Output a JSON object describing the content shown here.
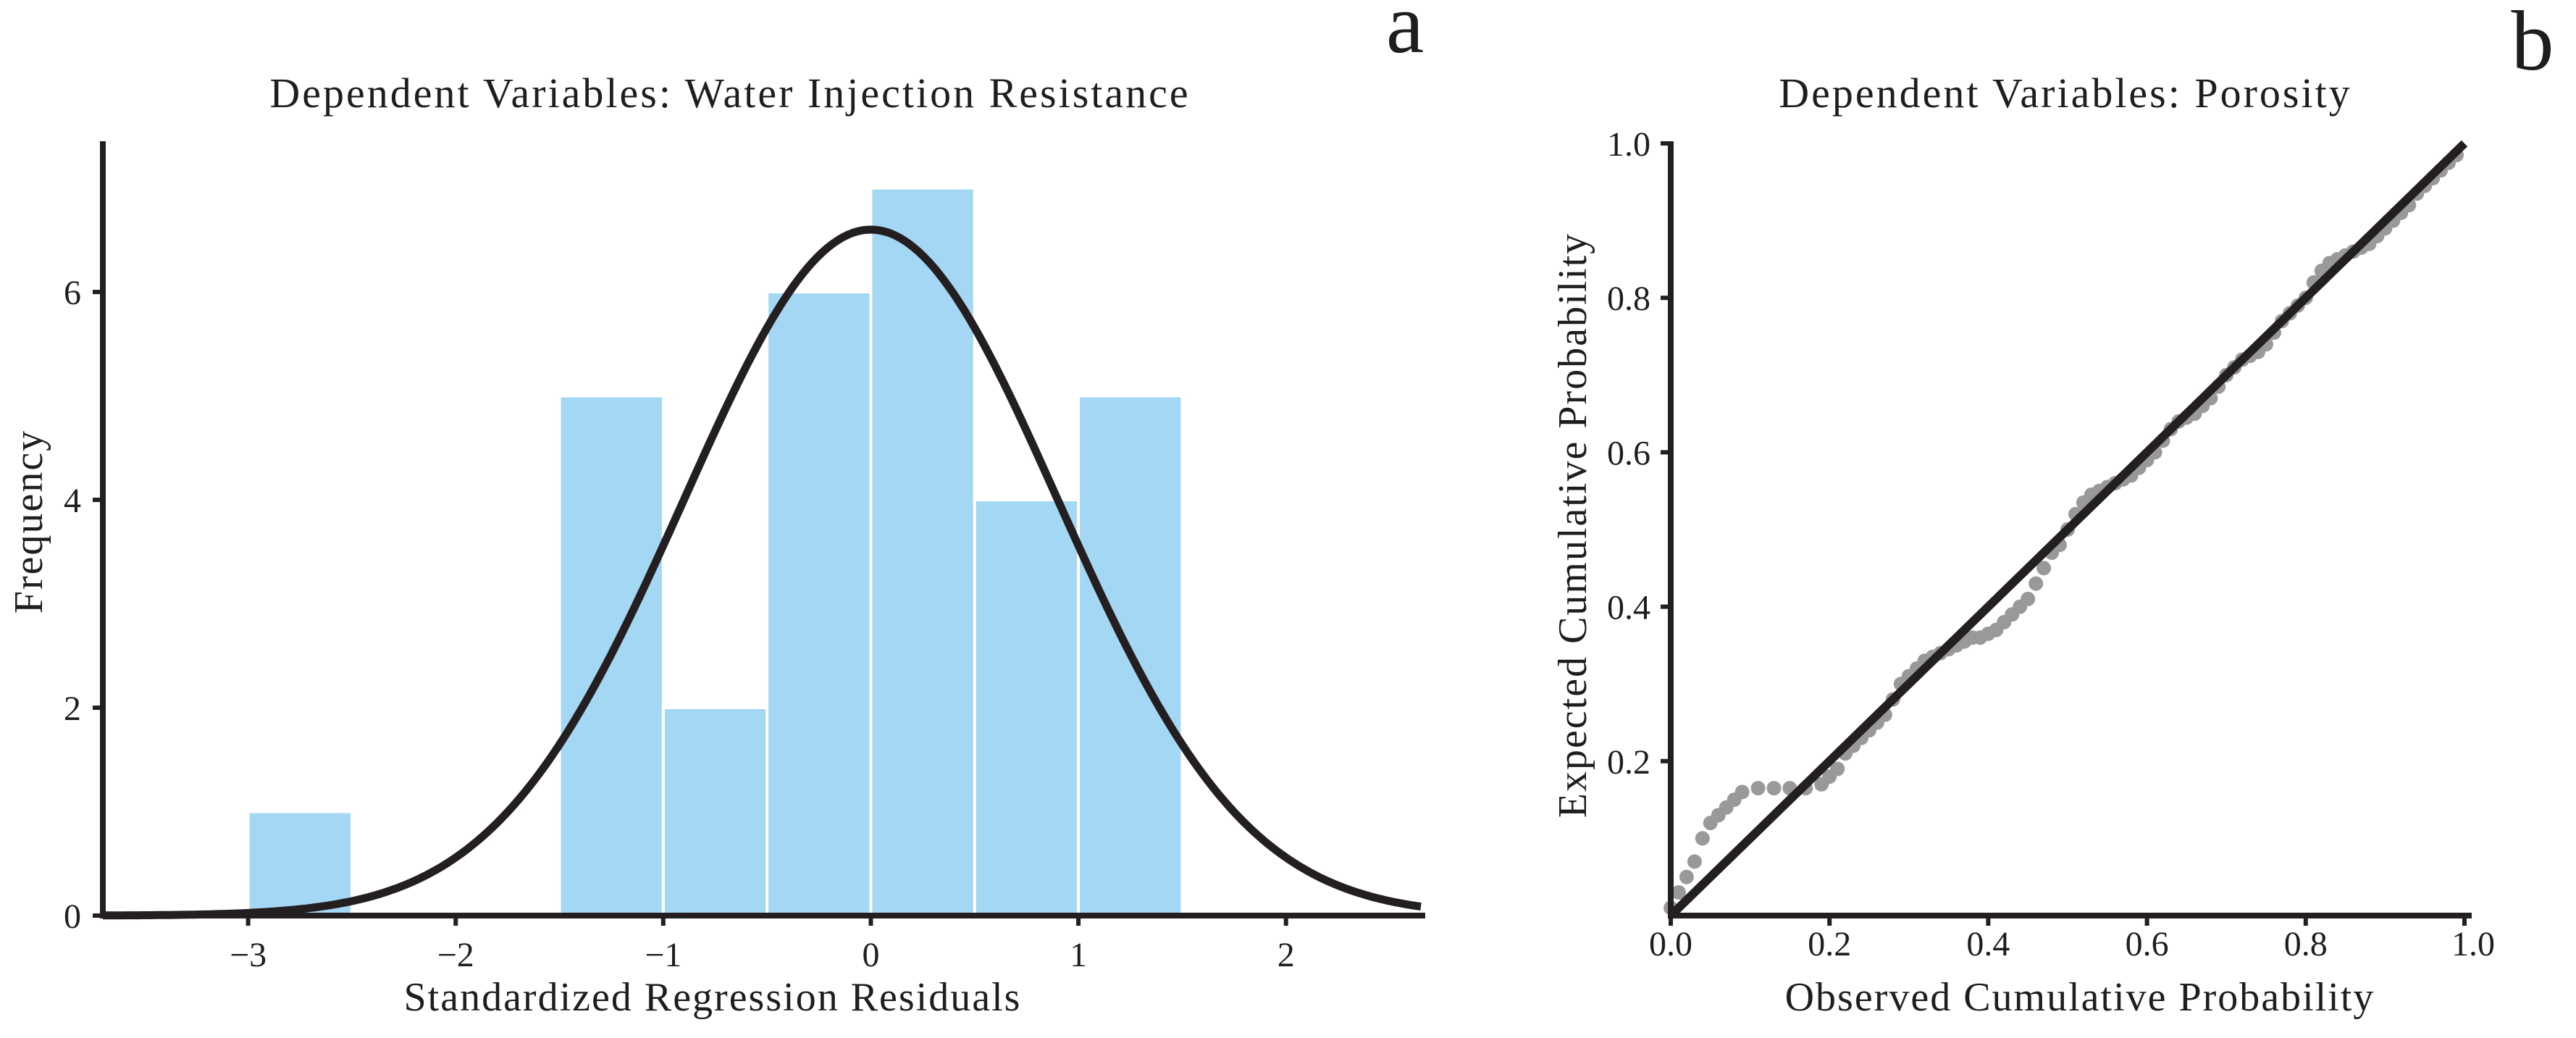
{
  "panel_labels": {
    "a": "a",
    "b": "b"
  },
  "chart_data": [
    {
      "type": "bar",
      "title": "Dependent Variables: Water Injection Resistance",
      "xlabel": "Standardized Regression Residuals",
      "ylabel": "Frequency",
      "xlim": [
        -3.7,
        2.65
      ],
      "ylim": [
        0,
        7.45
      ],
      "xticks": [
        -3,
        -2,
        -1,
        0,
        1,
        2
      ],
      "xtick_labels": [
        "−3",
        "−2",
        "−1",
        "0",
        "1",
        "2"
      ],
      "yticks": [
        0,
        2,
        4,
        6
      ],
      "ytick_labels": [
        "0",
        "2",
        "4",
        "6"
      ],
      "bins": [
        {
          "start": -3.0,
          "end": -2.5,
          "count": 1
        },
        {
          "start": -1.5,
          "end": -1.0,
          "count": 5
        },
        {
          "start": -1.0,
          "end": -0.5,
          "count": 2
        },
        {
          "start": -0.5,
          "end": 0.0,
          "count": 6
        },
        {
          "start": 0.0,
          "end": 0.5,
          "count": 7
        },
        {
          "start": 0.5,
          "end": 1.0,
          "count": 4
        },
        {
          "start": 1.0,
          "end": 1.5,
          "count": 5
        }
      ],
      "normal_curve": {
        "mean": 0.0,
        "sd": 0.9,
        "peak": 6.6
      },
      "bar_color": "#a3d7f4",
      "curve_color": "#231f20"
    },
    {
      "type": "scatter",
      "title": "Dependent Variables: Porosity",
      "xlabel": "Observed Cumulative Probability",
      "ylabel": "Expected Cumulative Probability",
      "xlim": [
        0,
        1
      ],
      "ylim": [
        0,
        1
      ],
      "xticks": [
        0,
        0.2,
        0.4,
        0.6,
        0.8,
        1.0
      ],
      "xtick_labels": [
        "0.0",
        "0.2",
        "0.4",
        "0.6",
        "0.8",
        "1.0"
      ],
      "yticks": [
        0.2,
        0.4,
        0.6,
        0.8,
        1.0
      ],
      "ytick_labels": [
        "0.2",
        "0.4",
        "0.6",
        "0.8",
        "1.0"
      ],
      "reference_line": [
        [
          0,
          0
        ],
        [
          1,
          1
        ]
      ],
      "points": [
        [
          0.0,
          0.01
        ],
        [
          0.01,
          0.03
        ],
        [
          0.02,
          0.05
        ],
        [
          0.03,
          0.07
        ],
        [
          0.04,
          0.1
        ],
        [
          0.05,
          0.12
        ],
        [
          0.06,
          0.13
        ],
        [
          0.07,
          0.14
        ],
        [
          0.08,
          0.15
        ],
        [
          0.09,
          0.16
        ],
        [
          0.11,
          0.165
        ],
        [
          0.13,
          0.165
        ],
        [
          0.15,
          0.165
        ],
        [
          0.17,
          0.165
        ],
        [
          0.19,
          0.17
        ],
        [
          0.2,
          0.18
        ],
        [
          0.21,
          0.19
        ],
        [
          0.22,
          0.21
        ],
        [
          0.23,
          0.22
        ],
        [
          0.24,
          0.23
        ],
        [
          0.25,
          0.24
        ],
        [
          0.26,
          0.25
        ],
        [
          0.27,
          0.26
        ],
        [
          0.28,
          0.28
        ],
        [
          0.29,
          0.3
        ],
        [
          0.3,
          0.31
        ],
        [
          0.31,
          0.32
        ],
        [
          0.32,
          0.33
        ],
        [
          0.33,
          0.335
        ],
        [
          0.34,
          0.34
        ],
        [
          0.35,
          0.345
        ],
        [
          0.36,
          0.35
        ],
        [
          0.37,
          0.355
        ],
        [
          0.38,
          0.36
        ],
        [
          0.39,
          0.36
        ],
        [
          0.4,
          0.365
        ],
        [
          0.41,
          0.37
        ],
        [
          0.42,
          0.38
        ],
        [
          0.43,
          0.39
        ],
        [
          0.44,
          0.4
        ],
        [
          0.45,
          0.41
        ],
        [
          0.46,
          0.43
        ],
        [
          0.47,
          0.45
        ],
        [
          0.48,
          0.47
        ],
        [
          0.49,
          0.48
        ],
        [
          0.5,
          0.5
        ],
        [
          0.51,
          0.52
        ],
        [
          0.52,
          0.535
        ],
        [
          0.53,
          0.545
        ],
        [
          0.54,
          0.55
        ],
        [
          0.55,
          0.555
        ],
        [
          0.56,
          0.56
        ],
        [
          0.57,
          0.565
        ],
        [
          0.58,
          0.57
        ],
        [
          0.59,
          0.58
        ],
        [
          0.6,
          0.59
        ],
        [
          0.61,
          0.6
        ],
        [
          0.62,
          0.615
        ],
        [
          0.63,
          0.63
        ],
        [
          0.64,
          0.64
        ],
        [
          0.65,
          0.645
        ],
        [
          0.66,
          0.65
        ],
        [
          0.67,
          0.66
        ],
        [
          0.68,
          0.67
        ],
        [
          0.69,
          0.685
        ],
        [
          0.7,
          0.7
        ],
        [
          0.71,
          0.71
        ],
        [
          0.72,
          0.72
        ],
        [
          0.73,
          0.725
        ],
        [
          0.74,
          0.73
        ],
        [
          0.75,
          0.74
        ],
        [
          0.76,
          0.755
        ],
        [
          0.77,
          0.77
        ],
        [
          0.78,
          0.78
        ],
        [
          0.79,
          0.79
        ],
        [
          0.8,
          0.8
        ],
        [
          0.81,
          0.82
        ],
        [
          0.82,
          0.835
        ],
        [
          0.83,
          0.845
        ],
        [
          0.84,
          0.85
        ],
        [
          0.85,
          0.855
        ],
        [
          0.86,
          0.86
        ],
        [
          0.87,
          0.865
        ],
        [
          0.88,
          0.87
        ],
        [
          0.89,
          0.88
        ],
        [
          0.9,
          0.89
        ],
        [
          0.91,
          0.9
        ],
        [
          0.92,
          0.91
        ],
        [
          0.93,
          0.92
        ],
        [
          0.94,
          0.935
        ],
        [
          0.95,
          0.945
        ],
        [
          0.96,
          0.955
        ],
        [
          0.97,
          0.965
        ],
        [
          0.98,
          0.975
        ],
        [
          0.99,
          0.985
        ]
      ],
      "point_color": "#999999",
      "line_color": "#231f20"
    }
  ]
}
